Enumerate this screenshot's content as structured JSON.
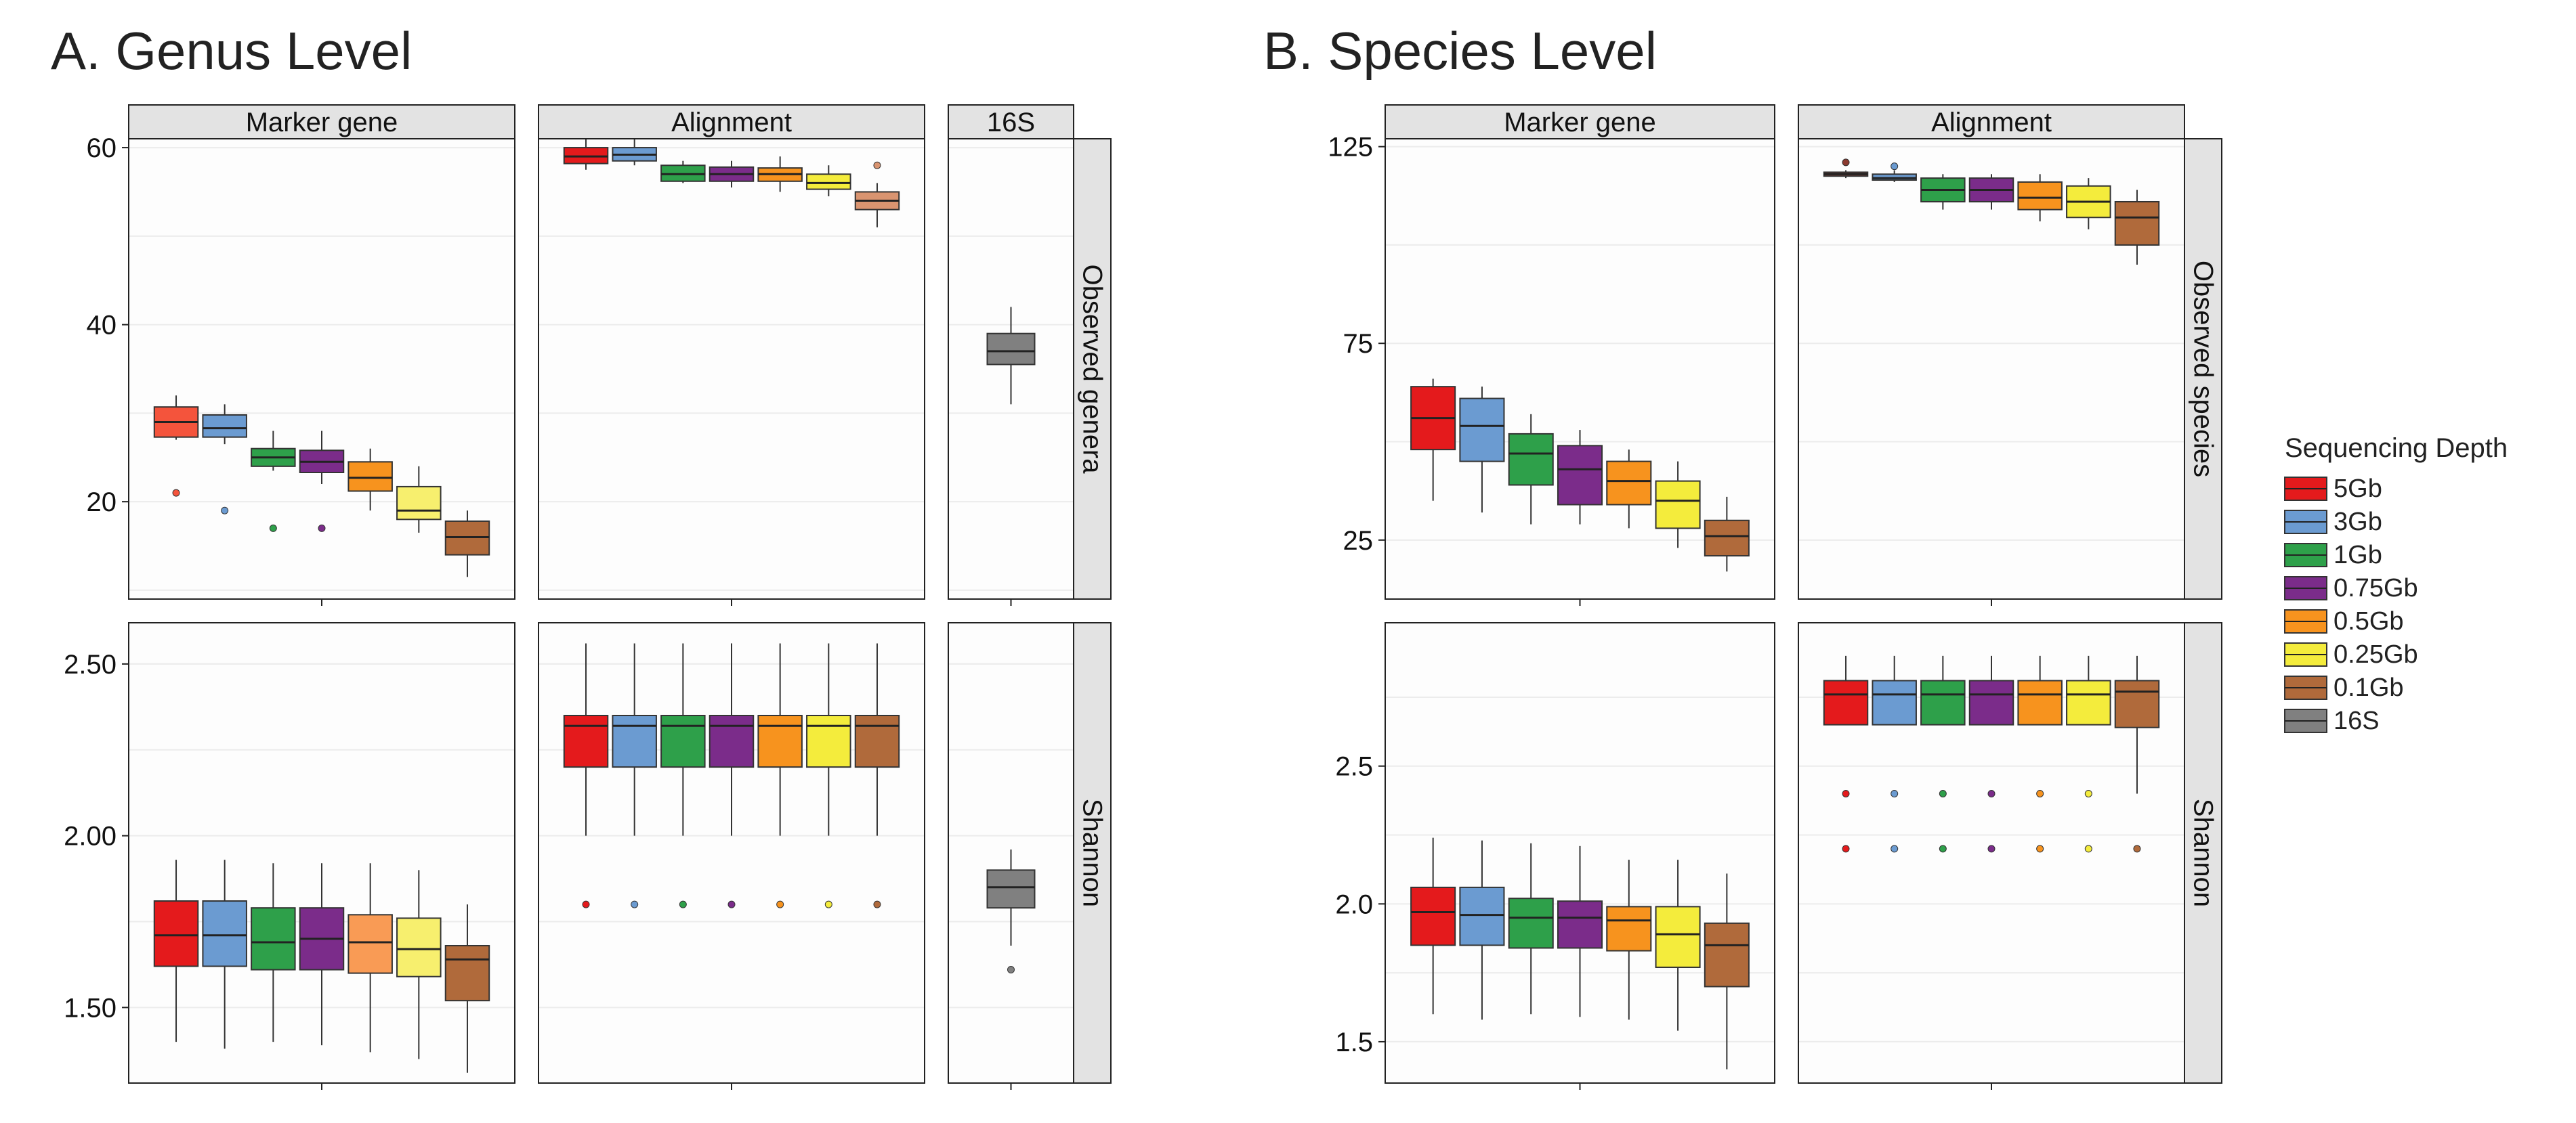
{
  "colors": {
    "5Gb": "#e41a1c",
    "3Gb": "#6b9bd1",
    "1Gb": "#2ea04a",
    "0.75Gb": "#7b2c8a",
    "0.5Gb": "#f7931e",
    "0.25Gb": "#f4ec3c",
    "0.1Gb": "#b06a3b",
    "16S": "#808080"
  },
  "legend": {
    "title": "Sequencing Depth",
    "items": [
      "5Gb",
      "3Gb",
      "1Gb",
      "0.75Gb",
      "0.5Gb",
      "0.25Gb",
      "0.1Gb",
      "16S"
    ]
  },
  "chart_data": [
    {
      "type": "boxplot",
      "title": "A. Genus Level",
      "columns": [
        "Marker gene",
        "Alignment",
        "16S"
      ],
      "rows": [
        "Observed genera",
        "Shannon"
      ],
      "panels": [
        {
          "column": "Marker gene",
          "row": "Observed genera",
          "ylim": [
            9,
            61
          ],
          "yticks": [
            "20",
            "40",
            "60"
          ],
          "boxes": [
            {
              "group": "5Gb",
              "color_override": "#f4543c",
              "min": 27,
              "q1": 27.3,
              "median": 29,
              "q3": 30.7,
              "max": 32,
              "outliers": [
                21
              ]
            },
            {
              "group": "3Gb",
              "min": 26.5,
              "q1": 27.3,
              "median": 28.3,
              "q3": 29.8,
              "max": 31,
              "outliers": [
                19
              ]
            },
            {
              "group": "1Gb",
              "min": 23.5,
              "q1": 24,
              "median": 25,
              "q3": 26,
              "max": 28,
              "outliers": [
                17
              ]
            },
            {
              "group": "0.75Gb",
              "min": 22,
              "q1": 23.3,
              "median": 24.5,
              "q3": 25.8,
              "max": 28,
              "outliers": [
                17
              ]
            },
            {
              "group": "0.5Gb",
              "min": 19,
              "q1": 21.2,
              "median": 22.7,
              "q3": 24.5,
              "max": 26
            },
            {
              "group": "0.25Gb",
              "color_override": "#f7ef6e",
              "min": 16.5,
              "q1": 18,
              "median": 19,
              "q3": 21.7,
              "max": 24
            },
            {
              "group": "0.1Gb",
              "min": 11.5,
              "q1": 14,
              "median": 16,
              "q3": 17.8,
              "max": 19
            }
          ]
        },
        {
          "column": "Alignment",
          "row": "Observed genera",
          "ylim": [
            9,
            61
          ],
          "yticks": [
            "20",
            "40",
            "60"
          ],
          "boxes": [
            {
              "group": "5Gb",
              "min": 57.5,
              "q1": 58.2,
              "median": 59,
              "q3": 60,
              "max": 61
            },
            {
              "group": "3Gb",
              "min": 58,
              "q1": 58.5,
              "median": 59.2,
              "q3": 60,
              "max": 61
            },
            {
              "group": "1Gb",
              "min": 56,
              "q1": 56.2,
              "median": 57,
              "q3": 58,
              "max": 58.5
            },
            {
              "group": "0.75Gb",
              "min": 55.5,
              "q1": 56.2,
              "median": 57,
              "q3": 57.8,
              "max": 58.5
            },
            {
              "group": "0.5Gb",
              "min": 55,
              "q1": 56.2,
              "median": 57,
              "q3": 57.7,
              "max": 59
            },
            {
              "group": "0.25Gb",
              "min": 54.5,
              "q1": 55.3,
              "median": 56,
              "q3": 57,
              "max": 58
            },
            {
              "group": "0.1Gb",
              "color_override": "#d99470",
              "min": 51,
              "q1": 53,
              "median": 54,
              "q3": 55,
              "max": 56,
              "outliers": [
                58
              ]
            }
          ]
        },
        {
          "column": "16S",
          "row": "Observed genera",
          "ylim": [
            9,
            61
          ],
          "yticks": [
            "20",
            "40",
            "60"
          ],
          "boxes": [
            {
              "group": "16S",
              "min": 31,
              "q1": 35.5,
              "median": 37,
              "q3": 39,
              "max": 42
            }
          ]
        },
        {
          "column": "Marker gene",
          "row": "Shannon",
          "ylim": [
            1.28,
            2.62
          ],
          "yticks": [
            "1.50",
            "2.00",
            "2.50"
          ],
          "boxes": [
            {
              "group": "5Gb",
              "min": 1.4,
              "q1": 1.62,
              "median": 1.71,
              "q3": 1.81,
              "max": 1.93
            },
            {
              "group": "3Gb",
              "min": 1.38,
              "q1": 1.62,
              "median": 1.71,
              "q3": 1.81,
              "max": 1.93
            },
            {
              "group": "1Gb",
              "min": 1.4,
              "q1": 1.61,
              "median": 1.69,
              "q3": 1.79,
              "max": 1.92
            },
            {
              "group": "0.75Gb",
              "min": 1.39,
              "q1": 1.61,
              "median": 1.7,
              "q3": 1.79,
              "max": 1.92
            },
            {
              "group": "0.5Gb",
              "color_override": "#f99b55",
              "min": 1.37,
              "q1": 1.6,
              "median": 1.69,
              "q3": 1.77,
              "max": 1.92
            },
            {
              "group": "0.25Gb",
              "color_override": "#f7ef6e",
              "min": 1.35,
              "q1": 1.59,
              "median": 1.67,
              "q3": 1.76,
              "max": 1.9
            },
            {
              "group": "0.1Gb",
              "min": 1.31,
              "q1": 1.52,
              "median": 1.64,
              "q3": 1.68,
              "max": 1.8
            }
          ]
        },
        {
          "column": "Alignment",
          "row": "Shannon",
          "ylim": [
            1.28,
            2.62
          ],
          "yticks": [
            "1.50",
            "2.00",
            "2.50"
          ],
          "boxes": [
            {
              "group": "5Gb",
              "min": 2.0,
              "q1": 2.2,
              "median": 2.32,
              "q3": 2.35,
              "max": 2.56,
              "outliers": [
                1.8
              ]
            },
            {
              "group": "3Gb",
              "min": 2.0,
              "q1": 2.2,
              "median": 2.32,
              "q3": 2.35,
              "max": 2.56,
              "outliers": [
                1.8
              ]
            },
            {
              "group": "1Gb",
              "min": 2.0,
              "q1": 2.2,
              "median": 2.32,
              "q3": 2.35,
              "max": 2.56,
              "outliers": [
                1.8
              ]
            },
            {
              "group": "0.75Gb",
              "min": 2.0,
              "q1": 2.2,
              "median": 2.32,
              "q3": 2.35,
              "max": 2.56,
              "outliers": [
                1.8
              ]
            },
            {
              "group": "0.5Gb",
              "min": 2.0,
              "q1": 2.2,
              "median": 2.32,
              "q3": 2.35,
              "max": 2.56,
              "outliers": [
                1.8
              ]
            },
            {
              "group": "0.25Gb",
              "min": 2.0,
              "q1": 2.2,
              "median": 2.32,
              "q3": 2.35,
              "max": 2.56,
              "outliers": [
                1.8
              ]
            },
            {
              "group": "0.1Gb",
              "min": 2.0,
              "q1": 2.2,
              "median": 2.32,
              "q3": 2.35,
              "max": 2.56,
              "outliers": [
                1.8
              ]
            }
          ]
        },
        {
          "column": "16S",
          "row": "Shannon",
          "ylim": [
            1.28,
            2.62
          ],
          "yticks": [
            "1.50",
            "2.00",
            "2.50"
          ],
          "boxes": [
            {
              "group": "16S",
              "min": 1.68,
              "q1": 1.79,
              "median": 1.85,
              "q3": 1.9,
              "max": 1.96,
              "outliers": [
                1.61
              ]
            }
          ]
        }
      ]
    },
    {
      "type": "boxplot",
      "title": "B. Species Level",
      "columns": [
        "Marker gene",
        "Alignment"
      ],
      "rows": [
        "Observed species",
        "Shannon"
      ],
      "panels": [
        {
          "column": "Marker gene",
          "row": "Observed species",
          "ylim": [
            10,
            127
          ],
          "yticks": [
            "25",
            "75",
            "125"
          ],
          "boxes": [
            {
              "group": "5Gb",
              "min": 35,
              "q1": 48,
              "median": 56,
              "q3": 64,
              "max": 66
            },
            {
              "group": "3Gb",
              "min": 32,
              "q1": 45,
              "median": 54,
              "q3": 61,
              "max": 64
            },
            {
              "group": "1Gb",
              "min": 29,
              "q1": 39,
              "median": 47,
              "q3": 52,
              "max": 57
            },
            {
              "group": "0.75Gb",
              "min": 29,
              "q1": 34,
              "median": 43,
              "q3": 49,
              "max": 53
            },
            {
              "group": "0.5Gb",
              "min": 28,
              "q1": 34,
              "median": 40,
              "q3": 45,
              "max": 48
            },
            {
              "group": "0.25Gb",
              "min": 23,
              "q1": 28,
              "median": 35,
              "q3": 40,
              "max": 45
            },
            {
              "group": "0.1Gb",
              "min": 17,
              "q1": 21,
              "median": 26,
              "q3": 30,
              "max": 36
            }
          ]
        },
        {
          "column": "Alignment",
          "row": "Observed species",
          "ylim": [
            10,
            127
          ],
          "yticks": [
            "25",
            "75",
            "125"
          ],
          "boxes": [
            {
              "group": "5Gb",
              "color_override": "#8b3a2f",
              "min": 117,
              "q1": 117.5,
              "median": 118,
              "q3": 118.5,
              "max": 119,
              "outliers": [
                121
              ]
            },
            {
              "group": "3Gb",
              "min": 116,
              "q1": 116.5,
              "median": 117,
              "q3": 118,
              "max": 119,
              "outliers": [
                120
              ]
            },
            {
              "group": "1Gb",
              "min": 109,
              "q1": 111,
              "median": 114,
              "q3": 117,
              "max": 118
            },
            {
              "group": "0.75Gb",
              "min": 109,
              "q1": 111,
              "median": 114,
              "q3": 117,
              "max": 118
            },
            {
              "group": "0.5Gb",
              "min": 106,
              "q1": 109,
              "median": 112,
              "q3": 116,
              "max": 118
            },
            {
              "group": "0.25Gb",
              "min": 104,
              "q1": 107,
              "median": 111,
              "q3": 115,
              "max": 117
            },
            {
              "group": "0.1Gb",
              "min": 95,
              "q1": 100,
              "median": 107,
              "q3": 111,
              "max": 114
            }
          ]
        },
        {
          "column": "Marker gene",
          "row": "Shannon",
          "ylim": [
            1.35,
            3.02
          ],
          "yticks": [
            "1.5",
            "2.0",
            "2.5"
          ],
          "boxes": [
            {
              "group": "5Gb",
              "min": 1.6,
              "q1": 1.85,
              "median": 1.97,
              "q3": 2.06,
              "max": 2.24
            },
            {
              "group": "3Gb",
              "min": 1.58,
              "q1": 1.85,
              "median": 1.96,
              "q3": 2.06,
              "max": 2.23
            },
            {
              "group": "1Gb",
              "min": 1.6,
              "q1": 1.84,
              "median": 1.95,
              "q3": 2.02,
              "max": 2.22
            },
            {
              "group": "0.75Gb",
              "min": 1.59,
              "q1": 1.84,
              "median": 1.95,
              "q3": 2.01,
              "max": 2.21
            },
            {
              "group": "0.5Gb",
              "min": 1.58,
              "q1": 1.83,
              "median": 1.94,
              "q3": 1.99,
              "max": 2.16
            },
            {
              "group": "0.25Gb",
              "min": 1.54,
              "q1": 1.77,
              "median": 1.89,
              "q3": 1.99,
              "max": 2.16
            },
            {
              "group": "0.1Gb",
              "min": 1.4,
              "q1": 1.7,
              "median": 1.85,
              "q3": 1.93,
              "max": 2.11
            }
          ]
        },
        {
          "column": "Alignment",
          "row": "Shannon",
          "ylim": [
            1.35,
            3.02
          ],
          "yticks": [
            "1.5",
            "2.0",
            "2.5"
          ],
          "boxes": [
            {
              "group": "5Gb",
              "min": 2.65,
              "q1": 2.65,
              "median": 2.76,
              "q3": 2.81,
              "max": 2.9,
              "outliers": [
                2.4,
                2.2
              ]
            },
            {
              "group": "3Gb",
              "min": 2.65,
              "q1": 2.65,
              "median": 2.76,
              "q3": 2.81,
              "max": 2.9,
              "outliers": [
                2.4,
                2.2
              ]
            },
            {
              "group": "1Gb",
              "min": 2.65,
              "q1": 2.65,
              "median": 2.76,
              "q3": 2.81,
              "max": 2.9,
              "outliers": [
                2.4,
                2.2
              ]
            },
            {
              "group": "0.75Gb",
              "min": 2.65,
              "q1": 2.65,
              "median": 2.76,
              "q3": 2.81,
              "max": 2.9,
              "outliers": [
                2.4,
                2.2
              ]
            },
            {
              "group": "0.5Gb",
              "min": 2.65,
              "q1": 2.65,
              "median": 2.76,
              "q3": 2.81,
              "max": 2.9,
              "outliers": [
                2.4,
                2.2
              ]
            },
            {
              "group": "0.25Gb",
              "min": 2.65,
              "q1": 2.65,
              "median": 2.76,
              "q3": 2.81,
              "max": 2.9,
              "outliers": [
                2.4,
                2.2
              ]
            },
            {
              "group": "0.1Gb",
              "min": 2.4,
              "q1": 2.64,
              "median": 2.77,
              "q3": 2.81,
              "max": 2.9,
              "outliers": [
                2.2
              ]
            }
          ]
        }
      ]
    }
  ]
}
